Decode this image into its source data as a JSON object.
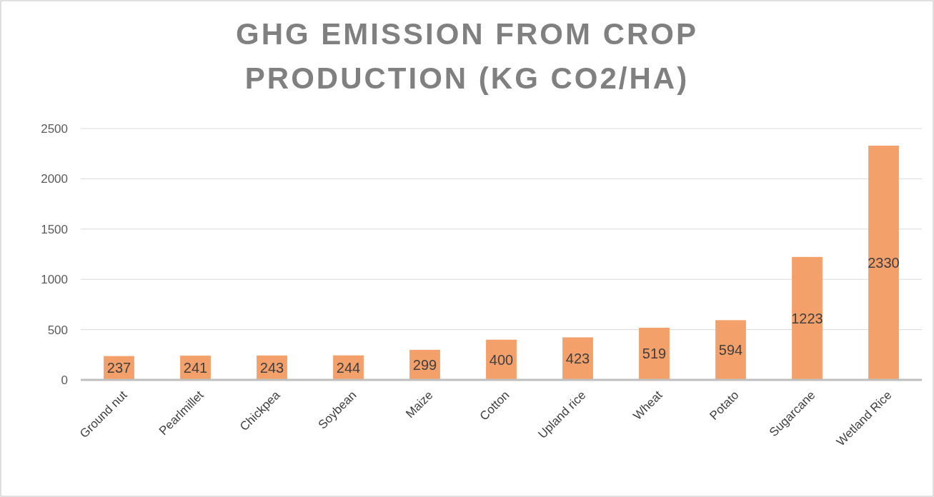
{
  "chart_data": {
    "type": "bar",
    "title": "GHG EMISSION FROM CROP PRODUCTION (KG CO2/HA)",
    "categories": [
      "Ground nut",
      "Pearlmillet",
      "Chickpea",
      "Soybean",
      "Maize",
      "Cotton",
      "Upland rice",
      "Wheat",
      "Potato",
      "Sugarcane",
      "Wetland Rice"
    ],
    "values": [
      237,
      241,
      243,
      244,
      299,
      400,
      423,
      519,
      594,
      1223,
      2330
    ],
    "color": "#f4a06a",
    "ylim": [
      0,
      2500
    ],
    "yticks": [
      0,
      500,
      1000,
      1500,
      2000,
      2500
    ],
    "grid": "y",
    "data_labels": true
  }
}
